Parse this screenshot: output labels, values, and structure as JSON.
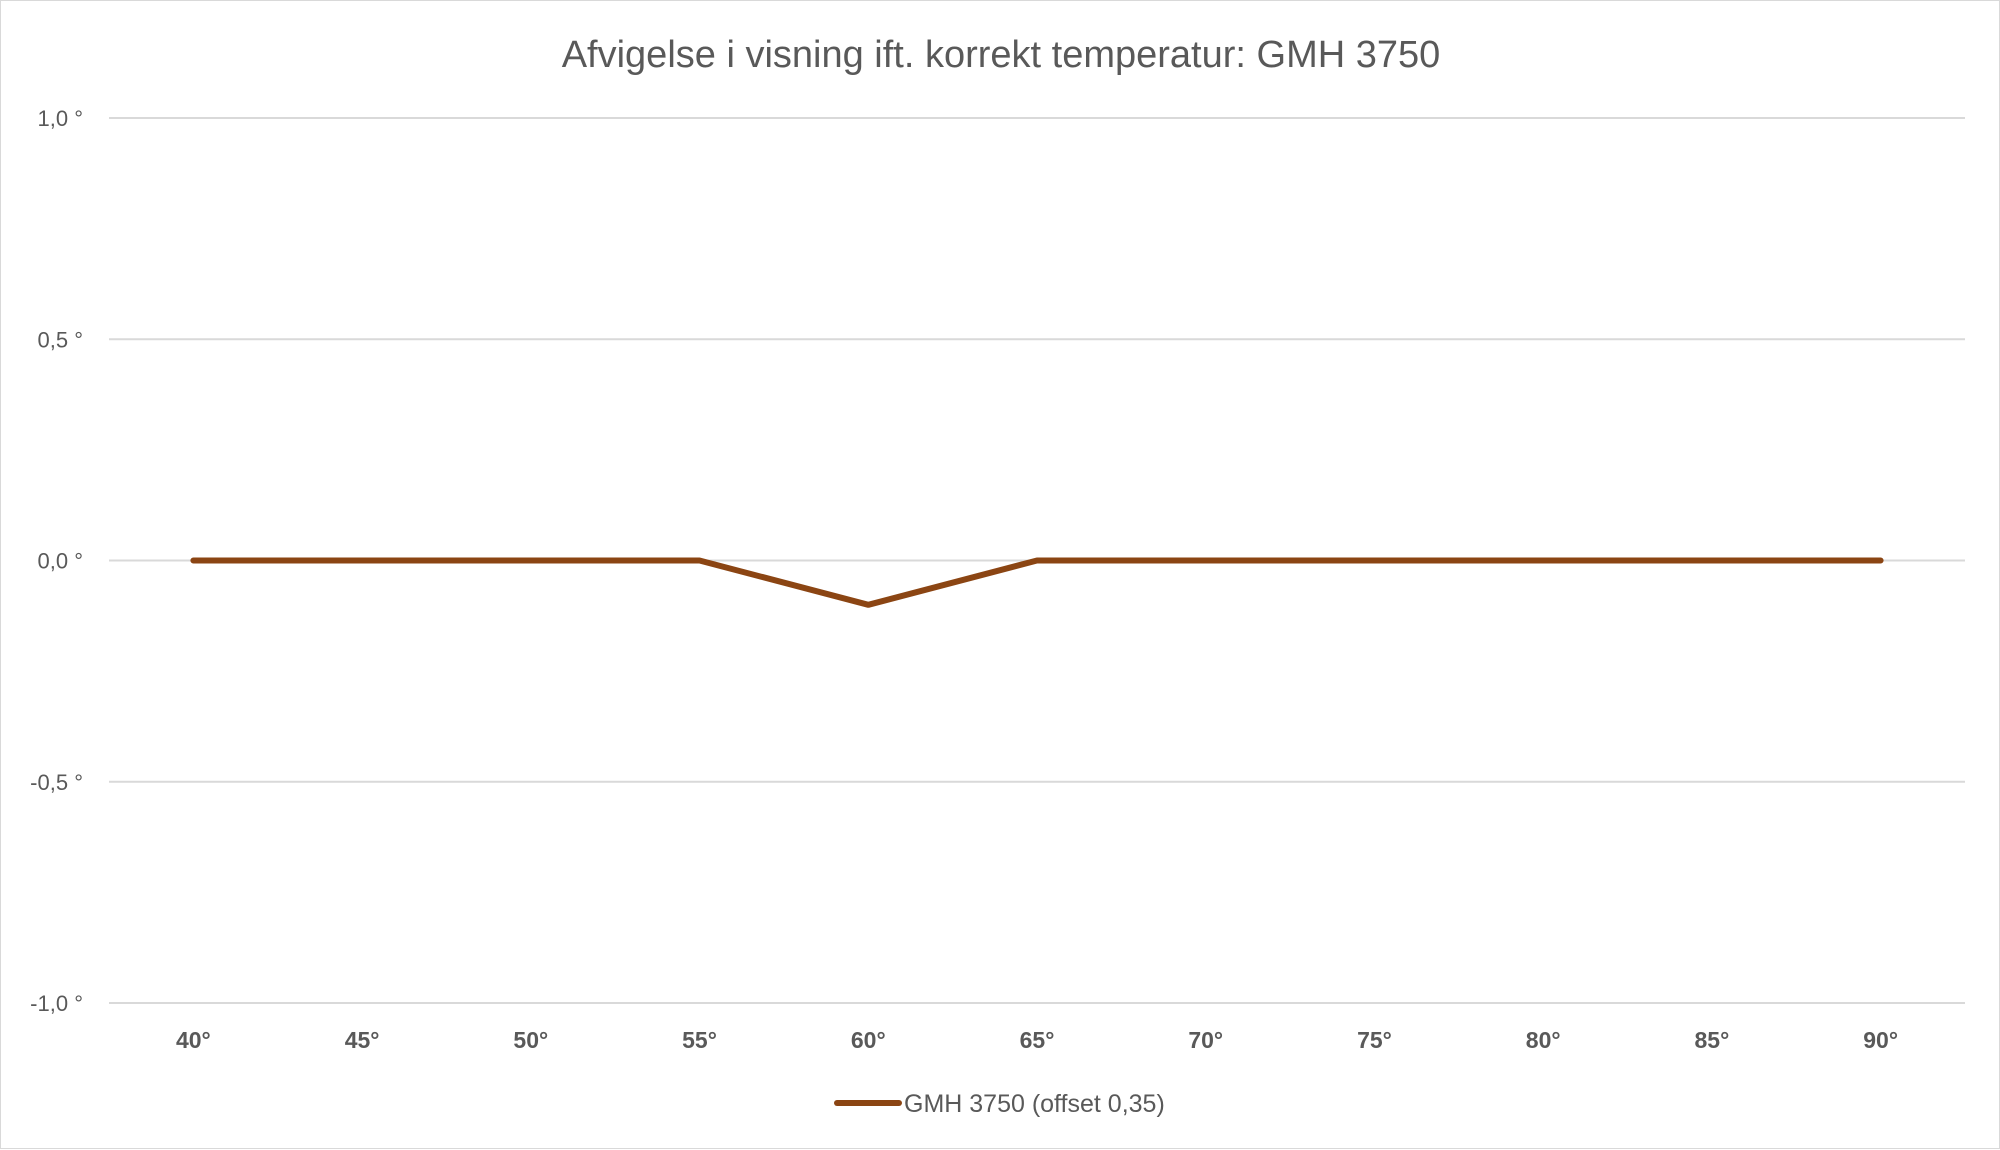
{
  "chart_data": {
    "type": "line",
    "title": "Afvigelse i visning ift. korrekt temperatur: GMH 3750",
    "categories": [
      "40°",
      "45°",
      "50°",
      "55°",
      "60°",
      "65°",
      "70°",
      "75°",
      "80°",
      "85°",
      "90°"
    ],
    "series": [
      {
        "name": "GMH 3750 (offset 0,35)",
        "values": [
          0,
          0,
          0,
          0,
          -0.1,
          0,
          0,
          0,
          0,
          0,
          0
        ],
        "color": "#8B4513"
      }
    ],
    "y_ticks": [
      1.0,
      0.5,
      0.0,
      -0.5,
      -1.0
    ],
    "y_tick_labels": [
      "1,0 °",
      "0,5 °",
      "0,0 °",
      "-0,5 °",
      "-1,0 °"
    ],
    "ylim": [
      -1.0,
      1.0
    ],
    "grid": true,
    "legend_position": "bottom",
    "xlabel": "",
    "ylabel": ""
  }
}
